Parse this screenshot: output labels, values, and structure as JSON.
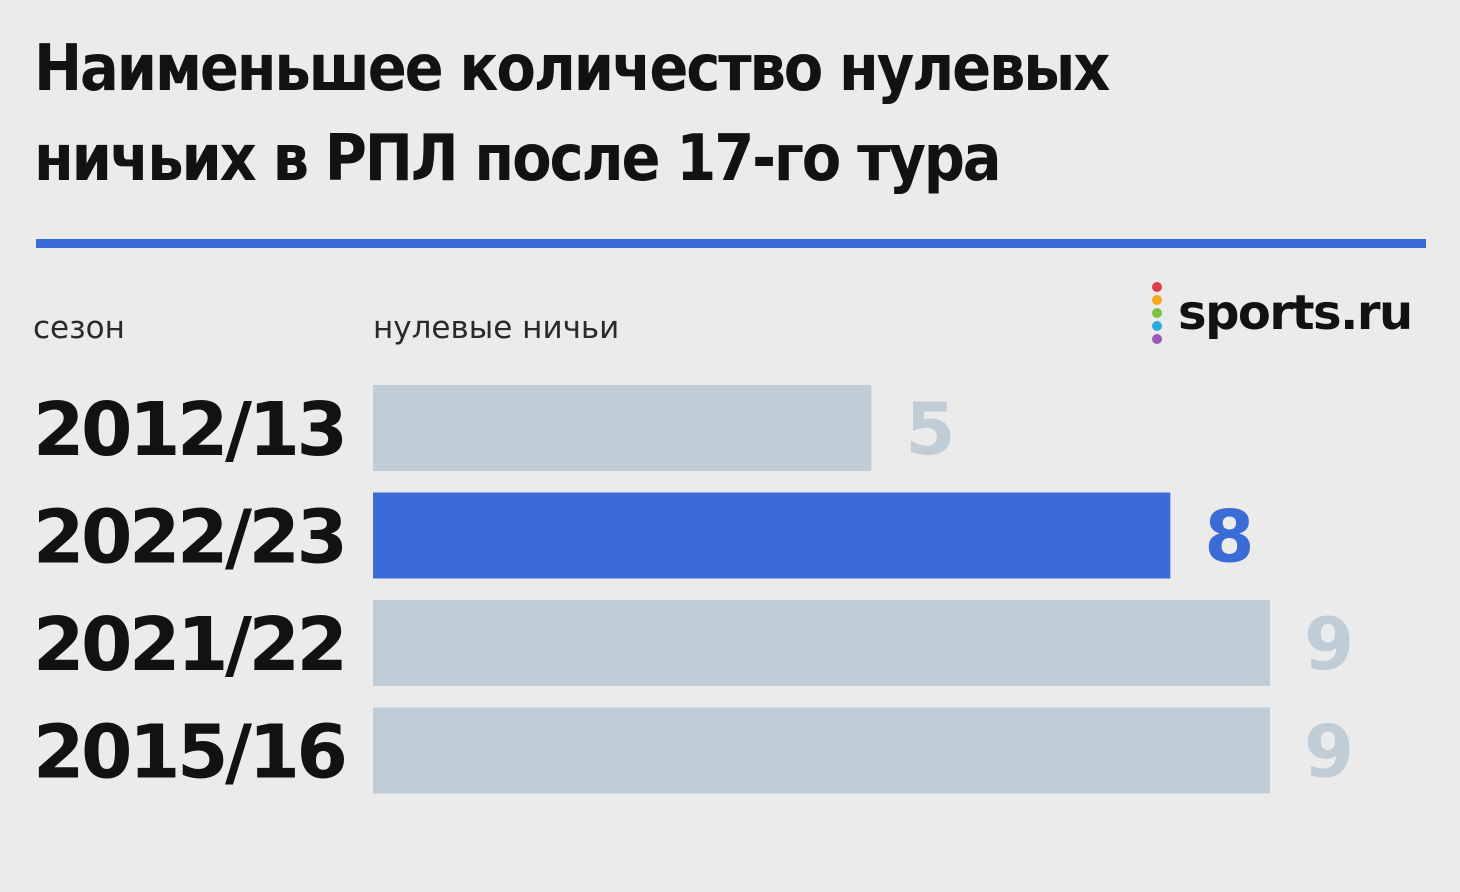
{
  "chart_data": {
    "type": "bar",
    "orientation": "horizontal",
    "title": "Наименьшее количество нулевых ничьих в РПЛ после 17-го тура",
    "category_header": "сезон",
    "value_header": "нулевые ничьи",
    "categories": [
      "2012/13",
      "2022/23",
      "2021/22",
      "2015/16"
    ],
    "values": [
      5,
      8,
      9,
      9
    ],
    "highlight_index": 1,
    "xlim": [
      0,
      9
    ],
    "grid": false,
    "colors": {
      "default": "#c0ccd6",
      "highlight": "#3a6bd6",
      "default_label": "#c0ccd6",
      "highlight_label": "#3a6bd6"
    }
  },
  "logo": {
    "text": "sports.ru",
    "dot_colors": [
      "#e23b4a",
      "#f4a81d",
      "#7cc242",
      "#2eaadc",
      "#9b59b6"
    ]
  },
  "accent_color": "#3a6bd6"
}
